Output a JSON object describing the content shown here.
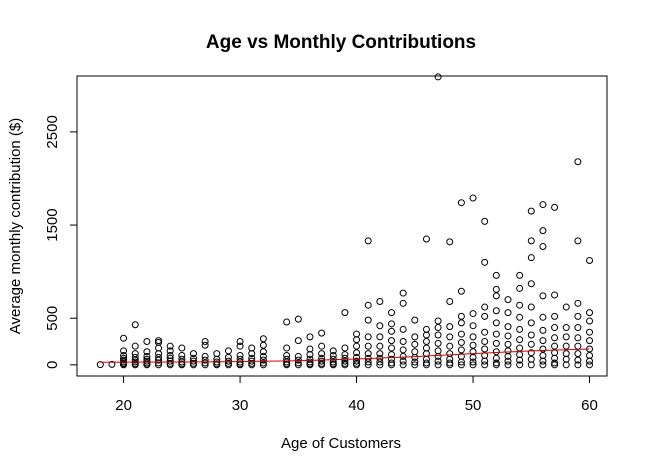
{
  "chart_data": {
    "type": "scatter",
    "title": "Age vs Monthly Contributions",
    "xlabel": "Age of Customers",
    "ylabel": "Average monthly contribution ($)",
    "xlim": [
      16,
      61.5
    ],
    "ylim": [
      -120,
      3100
    ],
    "xticks": [
      20,
      30,
      40,
      50,
      60
    ],
    "yticks": [
      0,
      500,
      1500,
      2500
    ],
    "grid": false,
    "legend": "none",
    "point_color": "#000000",
    "trend_color": "#cc0000",
    "points": [
      [
        18,
        2
      ],
      [
        19,
        5
      ],
      [
        20,
        285
      ],
      [
        20,
        150
      ],
      [
        20,
        100
      ],
      [
        20,
        70
      ],
      [
        20,
        50
      ],
      [
        20,
        30
      ],
      [
        20,
        15
      ],
      [
        20,
        5
      ],
      [
        20,
        0
      ],
      [
        21,
        430
      ],
      [
        21,
        200
      ],
      [
        21,
        120
      ],
      [
        21,
        80
      ],
      [
        21,
        50
      ],
      [
        21,
        30
      ],
      [
        21,
        10
      ],
      [
        21,
        0
      ],
      [
        22,
        250
      ],
      [
        22,
        140
      ],
      [
        22,
        90
      ],
      [
        22,
        60
      ],
      [
        22,
        40
      ],
      [
        22,
        20
      ],
      [
        22,
        5
      ],
      [
        22,
        0
      ],
      [
        23,
        260
      ],
      [
        23,
        240
      ],
      [
        23,
        180
      ],
      [
        23,
        120
      ],
      [
        23,
        80
      ],
      [
        23,
        50
      ],
      [
        23,
        20
      ],
      [
        23,
        0
      ],
      [
        24,
        200
      ],
      [
        24,
        150
      ],
      [
        24,
        100
      ],
      [
        24,
        70
      ],
      [
        24,
        40
      ],
      [
        24,
        15
      ],
      [
        24,
        0
      ],
      [
        25,
        180
      ],
      [
        25,
        100
      ],
      [
        25,
        60
      ],
      [
        25,
        30
      ],
      [
        25,
        10
      ],
      [
        25,
        0
      ],
      [
        26,
        120
      ],
      [
        26,
        70
      ],
      [
        26,
        40
      ],
      [
        26,
        15
      ],
      [
        26,
        0
      ],
      [
        27,
        250
      ],
      [
        27,
        210
      ],
      [
        27,
        90
      ],
      [
        27,
        50
      ],
      [
        27,
        20
      ],
      [
        27,
        0
      ],
      [
        28,
        120
      ],
      [
        28,
        60
      ],
      [
        28,
        30
      ],
      [
        28,
        10
      ],
      [
        28,
        0
      ],
      [
        29,
        150
      ],
      [
        29,
        80
      ],
      [
        29,
        40
      ],
      [
        29,
        15
      ],
      [
        29,
        0
      ],
      [
        30,
        250
      ],
      [
        30,
        200
      ],
      [
        30,
        100
      ],
      [
        30,
        60
      ],
      [
        30,
        30
      ],
      [
        30,
        10
      ],
      [
        30,
        0
      ],
      [
        31,
        180
      ],
      [
        31,
        120
      ],
      [
        31,
        70
      ],
      [
        31,
        40
      ],
      [
        31,
        15
      ],
      [
        31,
        0
      ],
      [
        32,
        280
      ],
      [
        32,
        210
      ],
      [
        32,
        140
      ],
      [
        32,
        90
      ],
      [
        32,
        50
      ],
      [
        32,
        20
      ],
      [
        32,
        0
      ],
      [
        34,
        460
      ],
      [
        34,
        180
      ],
      [
        34,
        100
      ],
      [
        34,
        60
      ],
      [
        34,
        30
      ],
      [
        34,
        10
      ],
      [
        34,
        0
      ],
      [
        35,
        490
      ],
      [
        35,
        260
      ],
      [
        35,
        90
      ],
      [
        35,
        50
      ],
      [
        35,
        20
      ],
      [
        35,
        0
      ],
      [
        36,
        300
      ],
      [
        36,
        170
      ],
      [
        36,
        110
      ],
      [
        36,
        60
      ],
      [
        36,
        30
      ],
      [
        36,
        10
      ],
      [
        36,
        0
      ],
      [
        37,
        340
      ],
      [
        37,
        200
      ],
      [
        37,
        120
      ],
      [
        37,
        70
      ],
      [
        37,
        40
      ],
      [
        37,
        15
      ],
      [
        37,
        0
      ],
      [
        38,
        150
      ],
      [
        38,
        100
      ],
      [
        38,
        60
      ],
      [
        38,
        30
      ],
      [
        38,
        10
      ],
      [
        38,
        0
      ],
      [
        39,
        560
      ],
      [
        39,
        180
      ],
      [
        39,
        110
      ],
      [
        39,
        70
      ],
      [
        39,
        40
      ],
      [
        39,
        15
      ],
      [
        39,
        0
      ],
      [
        40,
        330
      ],
      [
        40,
        270
      ],
      [
        40,
        200
      ],
      [
        40,
        130
      ],
      [
        40,
        80
      ],
      [
        40,
        40
      ],
      [
        40,
        15
      ],
      [
        40,
        0
      ],
      [
        41,
        1330
      ],
      [
        41,
        640
      ],
      [
        41,
        480
      ],
      [
        41,
        300
      ],
      [
        41,
        200
      ],
      [
        41,
        120
      ],
      [
        41,
        70
      ],
      [
        41,
        30
      ],
      [
        41,
        0
      ],
      [
        42,
        680
      ],
      [
        42,
        420
      ],
      [
        42,
        300
      ],
      [
        42,
        200
      ],
      [
        42,
        120
      ],
      [
        42,
        70
      ],
      [
        42,
        30
      ],
      [
        42,
        0
      ],
      [
        43,
        560
      ],
      [
        43,
        440
      ],
      [
        43,
        360
      ],
      [
        43,
        260
      ],
      [
        43,
        180
      ],
      [
        43,
        110
      ],
      [
        43,
        60
      ],
      [
        43,
        20
      ],
      [
        43,
        0
      ],
      [
        44,
        770
      ],
      [
        44,
        660
      ],
      [
        44,
        380
      ],
      [
        44,
        250
      ],
      [
        44,
        160
      ],
      [
        44,
        90
      ],
      [
        44,
        40
      ],
      [
        44,
        0
      ],
      [
        45,
        480
      ],
      [
        45,
        300
      ],
      [
        45,
        220
      ],
      [
        45,
        140
      ],
      [
        45,
        80
      ],
      [
        45,
        30
      ],
      [
        45,
        0
      ],
      [
        46,
        1350
      ],
      [
        46,
        380
      ],
      [
        46,
        320
      ],
      [
        46,
        250
      ],
      [
        46,
        180
      ],
      [
        46,
        120
      ],
      [
        46,
        60
      ],
      [
        46,
        20
      ],
      [
        46,
        0
      ],
      [
        47,
        3090
      ],
      [
        47,
        470
      ],
      [
        47,
        400
      ],
      [
        47,
        320
      ],
      [
        47,
        230
      ],
      [
        47,
        150
      ],
      [
        47,
        90
      ],
      [
        47,
        40
      ],
      [
        47,
        0
      ],
      [
        48,
        1320
      ],
      [
        48,
        680
      ],
      [
        48,
        410
      ],
      [
        48,
        300
      ],
      [
        48,
        200
      ],
      [
        48,
        120
      ],
      [
        48,
        60
      ],
      [
        48,
        20
      ],
      [
        48,
        0
      ],
      [
        49,
        1740
      ],
      [
        49,
        790
      ],
      [
        49,
        520
      ],
      [
        49,
        450
      ],
      [
        49,
        330
      ],
      [
        49,
        240
      ],
      [
        49,
        160
      ],
      [
        49,
        90
      ],
      [
        49,
        30
      ],
      [
        49,
        0
      ],
      [
        50,
        1790
      ],
      [
        50,
        550
      ],
      [
        50,
        420
      ],
      [
        50,
        300
      ],
      [
        50,
        210
      ],
      [
        50,
        140
      ],
      [
        50,
        80
      ],
      [
        50,
        30
      ],
      [
        50,
        0
      ],
      [
        51,
        1540
      ],
      [
        51,
        1100
      ],
      [
        51,
        620
      ],
      [
        51,
        520
      ],
      [
        51,
        350
      ],
      [
        51,
        250
      ],
      [
        51,
        170
      ],
      [
        51,
        100
      ],
      [
        51,
        40
      ],
      [
        51,
        0
      ],
      [
        52,
        960
      ],
      [
        52,
        810
      ],
      [
        52,
        740
      ],
      [
        52,
        580
      ],
      [
        52,
        450
      ],
      [
        52,
        330
      ],
      [
        52,
        230
      ],
      [
        52,
        140
      ],
      [
        52,
        70
      ],
      [
        52,
        20
      ],
      [
        52,
        0
      ],
      [
        53,
        700
      ],
      [
        53,
        560
      ],
      [
        53,
        410
      ],
      [
        53,
        310
      ],
      [
        53,
        220
      ],
      [
        53,
        150
      ],
      [
        53,
        90
      ],
      [
        53,
        40
      ],
      [
        53,
        0
      ],
      [
        54,
        960
      ],
      [
        54,
        820
      ],
      [
        54,
        640
      ],
      [
        54,
        510
      ],
      [
        54,
        380
      ],
      [
        54,
        270
      ],
      [
        54,
        180
      ],
      [
        54,
        110
      ],
      [
        54,
        50
      ],
      [
        54,
        0
      ],
      [
        55,
        1650
      ],
      [
        55,
        1330
      ],
      [
        55,
        1150
      ],
      [
        55,
        870
      ],
      [
        55,
        620
      ],
      [
        55,
        450
      ],
      [
        55,
        320
      ],
      [
        55,
        220
      ],
      [
        55,
        130
      ],
      [
        55,
        60
      ],
      [
        55,
        0
      ],
      [
        56,
        1720
      ],
      [
        56,
        1440
      ],
      [
        56,
        1270
      ],
      [
        56,
        740
      ],
      [
        56,
        510
      ],
      [
        56,
        370
      ],
      [
        56,
        260
      ],
      [
        56,
        170
      ],
      [
        56,
        100
      ],
      [
        56,
        40
      ],
      [
        56,
        0
      ],
      [
        57,
        1690
      ],
      [
        57,
        750
      ],
      [
        57,
        520
      ],
      [
        57,
        400
      ],
      [
        57,
        290
      ],
      [
        57,
        200
      ],
      [
        57,
        130
      ],
      [
        57,
        70
      ],
      [
        57,
        20
      ],
      [
        57,
        0
      ],
      [
        58,
        620
      ],
      [
        58,
        400
      ],
      [
        58,
        300
      ],
      [
        58,
        200
      ],
      [
        58,
        120
      ],
      [
        58,
        60
      ],
      [
        58,
        0
      ],
      [
        59,
        2180
      ],
      [
        59,
        1330
      ],
      [
        59,
        660
      ],
      [
        59,
        520
      ],
      [
        59,
        400
      ],
      [
        59,
        290
      ],
      [
        59,
        200
      ],
      [
        59,
        120
      ],
      [
        59,
        50
      ],
      [
        59,
        0
      ],
      [
        60,
        1120
      ],
      [
        60,
        560
      ],
      [
        60,
        470
      ],
      [
        60,
        350
      ],
      [
        60,
        260
      ],
      [
        60,
        170
      ],
      [
        60,
        100
      ],
      [
        60,
        40
      ],
      [
        60,
        0
      ]
    ],
    "trend_line": [
      [
        18,
        28
      ],
      [
        25,
        30
      ],
      [
        30,
        34
      ],
      [
        35,
        44
      ],
      [
        40,
        62
      ],
      [
        45,
        88
      ],
      [
        50,
        120
      ],
      [
        55,
        150
      ],
      [
        60,
        170
      ]
    ]
  }
}
